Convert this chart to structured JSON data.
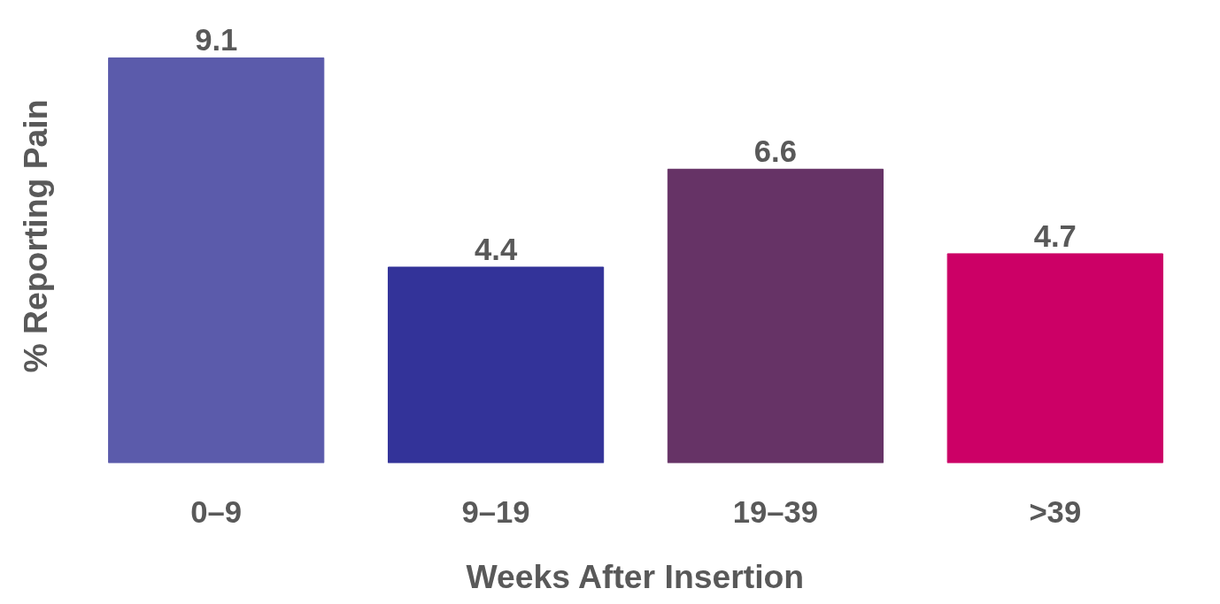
{
  "chart_data": {
    "type": "bar",
    "xlabel": "Weeks After Insertion",
    "ylabel": "% Reporting Pain",
    "categories": [
      "0–9",
      "9–19",
      "19–39",
      ">39"
    ],
    "values": [
      9.1,
      4.4,
      6.6,
      4.7
    ],
    "colors": [
      "#5b5bab",
      "#333399",
      "#663366",
      "#cc0066"
    ],
    "data_labels": true
  }
}
